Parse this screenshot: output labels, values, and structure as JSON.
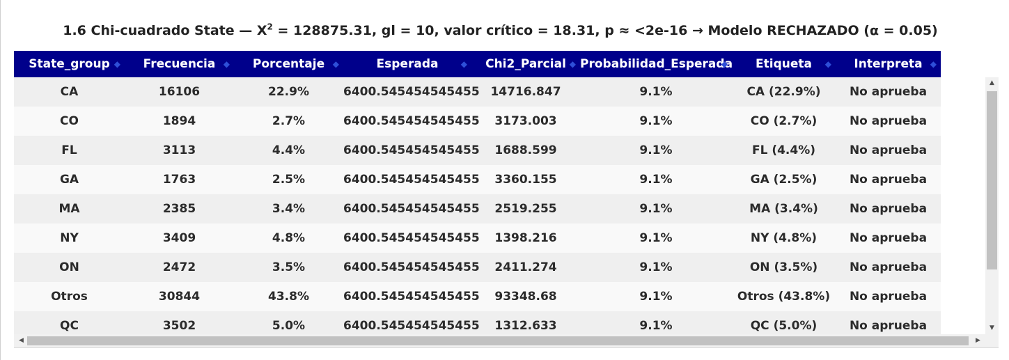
{
  "caption": {
    "before_sup": "1.6 Chi-cuadrado State — X",
    "sup": "2",
    "after_sup": " = 128875.31, gl = 10, valor crítico = 18.31, p ≈ <2e-16 → Modelo RECHAZADO (α = 0.05)"
  },
  "columns": [
    "State_group",
    "Frecuencia",
    "Porcentaje",
    "Esperada",
    "Chi2_Parcial",
    "Probabilidad_Esperada",
    "Etiqueta",
    "Interpreta"
  ],
  "sort_icon": "sort-arrows-icon",
  "rows": [
    [
      "CA",
      "16106",
      "22.9%",
      "6400.545454545455",
      "14716.847",
      "9.1%",
      "CA (22.9%)",
      "No aprueba"
    ],
    [
      "CO",
      "1894",
      "2.7%",
      "6400.545454545455",
      "3173.003",
      "9.1%",
      "CO (2.7%)",
      "No aprueba"
    ],
    [
      "FL",
      "3113",
      "4.4%",
      "6400.545454545455",
      "1688.599",
      "9.1%",
      "FL (4.4%)",
      "No aprueba"
    ],
    [
      "GA",
      "1763",
      "2.5%",
      "6400.545454545455",
      "3360.155",
      "9.1%",
      "GA (2.5%)",
      "No aprueba"
    ],
    [
      "MA",
      "2385",
      "3.4%",
      "6400.545454545455",
      "2519.255",
      "9.1%",
      "MA (3.4%)",
      "No aprueba"
    ],
    [
      "NY",
      "3409",
      "4.8%",
      "6400.545454545455",
      "1398.216",
      "9.1%",
      "NY (4.8%)",
      "No aprueba"
    ],
    [
      "ON",
      "2472",
      "3.5%",
      "6400.545454545455",
      "2411.274",
      "9.1%",
      "ON (3.5%)",
      "No aprueba"
    ],
    [
      "Otros",
      "30844",
      "43.8%",
      "6400.545454545455",
      "93348.68",
      "9.1%",
      "Otros (43.8%)",
      "No aprueba"
    ],
    [
      "QC",
      "3502",
      "5.0%",
      "6400.545454545455",
      "1312.633",
      "9.1%",
      "QC (5.0%)",
      "No aprueba"
    ]
  ],
  "colors": {
    "header_bg": "#00008b",
    "header_text": "#ffffff",
    "row_odd": "#efefef",
    "row_even": "#f9f9f9"
  }
}
